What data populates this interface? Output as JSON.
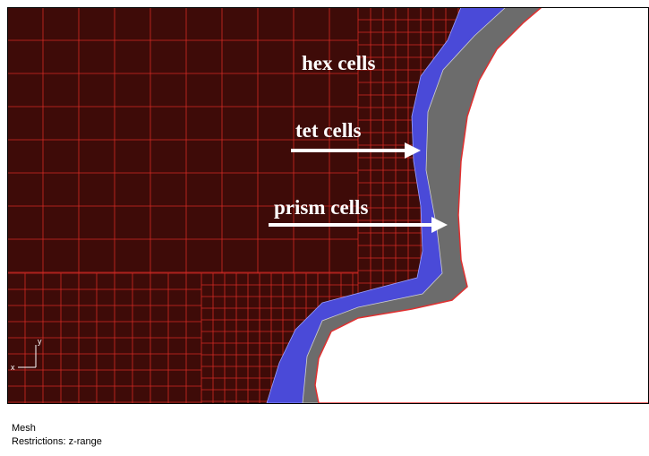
{
  "viewport": {
    "annotations": {
      "hex": "hex cells",
      "tet": "tet cells",
      "prism": "prism cells"
    },
    "triad": {
      "x": "x",
      "y": "y"
    }
  },
  "info_panel": {
    "title": "Mesh",
    "restrictions": "Restrictions:  z-range"
  }
}
